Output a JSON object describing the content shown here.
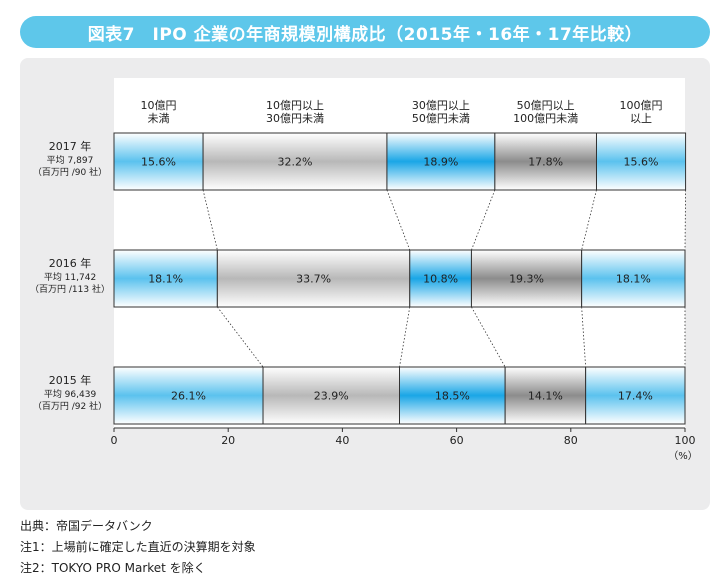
{
  "title": "図表7　IPO 企業の年商規模別構成比（2015年・16年・17年比較）",
  "chart_data": {
    "type": "bar",
    "orientation": "horizontal-stacked-100",
    "title": "図表7　IPO 企業の年商規模別構成比（2015年・16年・17年比較）",
    "xlabel": "",
    "unit_label": "（%）",
    "xlim": [
      0,
      100
    ],
    "xticks": [
      "0",
      "20",
      "40",
      "60",
      "80",
      "100"
    ],
    "segment_labels": [
      [
        "10億円",
        "未満"
      ],
      [
        "10億円以上",
        "30億円未満"
      ],
      [
        "30億円以上",
        "50億円未満"
      ],
      [
        "50億円以上",
        "100億円未満"
      ],
      [
        "100億円",
        "以上"
      ]
    ],
    "segment_colors": [
      "#5bc2ee",
      "#b8b8b8",
      "#1aa6e6",
      "#8c8c8c",
      "#5bc2ee"
    ],
    "rows": [
      {
        "year": "2017 年",
        "avg": "平均 7,897",
        "unit": "（百万円 /90 社）",
        "values": [
          15.6,
          32.2,
          18.9,
          17.8,
          15.6
        ]
      },
      {
        "year": "2016 年",
        "avg": "平均 11,742",
        "unit": "（百万円 /113 社）",
        "values": [
          18.1,
          33.7,
          10.8,
          19.3,
          18.1
        ]
      },
      {
        "year": "2015 年",
        "avg": "平均 96,439",
        "unit": "（百万円 /92 社）",
        "values": [
          26.1,
          23.9,
          18.5,
          14.1,
          17.4
        ]
      }
    ],
    "grid": false,
    "connector_lines": "dotted"
  },
  "notes": [
    "出典：帝国データバンク",
    "注1：上場前に確定した直近の決算期を対象",
    "注2：TOKYO PRO Market を除く"
  ]
}
